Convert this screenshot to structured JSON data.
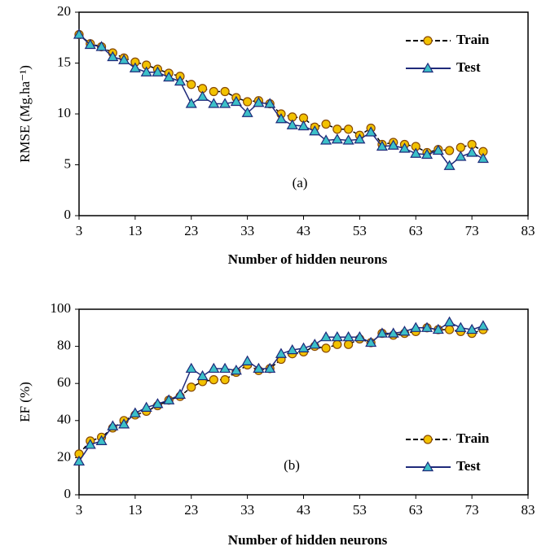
{
  "chart_data": [
    {
      "type": "line",
      "annotation": "(a)",
      "x_label": "Number of hidden neurons",
      "y_label": "RMSE (Mg.ha⁻¹)",
      "x": [
        3,
        5,
        7,
        9,
        11,
        13,
        15,
        17,
        19,
        21,
        23,
        25,
        27,
        29,
        31,
        33,
        35,
        37,
        39,
        41,
        43,
        45,
        47,
        49,
        51,
        53,
        55,
        57,
        59,
        61,
        63,
        65,
        67,
        69,
        71,
        73,
        75
      ],
      "series": [
        {
          "name": "Train",
          "color": "#f2c200",
          "line_color": "#000000",
          "dashed": true,
          "marker": "circle",
          "values": [
            17.8,
            16.9,
            16.6,
            16.0,
            15.5,
            15.1,
            14.8,
            14.4,
            14.0,
            13.7,
            12.9,
            12.5,
            12.2,
            12.2,
            11.6,
            11.2,
            11.3,
            11.0,
            10.0,
            9.7,
            9.6,
            8.7,
            9.0,
            8.5,
            8.5,
            7.9,
            8.6,
            7.0,
            7.2,
            7.0,
            6.8,
            6.2,
            6.5,
            6.4,
            6.7,
            7.0,
            6.3
          ]
        },
        {
          "name": "Test",
          "color": "#3cc0c8",
          "line_color": "#1f2a7a",
          "dashed": false,
          "marker": "triangle",
          "values": [
            17.8,
            16.8,
            16.6,
            15.6,
            15.3,
            14.5,
            14.1,
            14.1,
            13.6,
            13.2,
            11.0,
            11.7,
            11.0,
            11.0,
            11.2,
            10.1,
            11.1,
            11.0,
            9.5,
            8.9,
            8.8,
            8.3,
            7.4,
            7.5,
            7.4,
            7.5,
            8.2,
            6.8,
            6.9,
            6.6,
            6.1,
            6.0,
            6.4,
            4.9,
            5.8,
            6.2,
            5.6
          ]
        }
      ],
      "xlim": [
        3,
        83
      ],
      "xticks": [
        3,
        13,
        23,
        33,
        43,
        53,
        63,
        73,
        83
      ],
      "ylim": [
        0,
        20
      ],
      "yticks": [
        0,
        5,
        10,
        15,
        20
      ],
      "legend": "upper right"
    },
    {
      "type": "line",
      "annotation": "(b)",
      "x_label": "Number of hidden neurons",
      "y_label": "EF (%)",
      "x": [
        3,
        5,
        7,
        9,
        11,
        13,
        15,
        17,
        19,
        21,
        23,
        25,
        27,
        29,
        31,
        33,
        35,
        37,
        39,
        41,
        43,
        45,
        47,
        49,
        51,
        53,
        55,
        57,
        59,
        61,
        63,
        65,
        67,
        69,
        71,
        73,
        75
      ],
      "series": [
        {
          "name": "Train",
          "color": "#f2c200",
          "line_color": "#000000",
          "dashed": true,
          "marker": "circle",
          "values": [
            22,
            29,
            31,
            36,
            40,
            43,
            45,
            48,
            51,
            53,
            58,
            61,
            62,
            62,
            66,
            70,
            67,
            68,
            73,
            76,
            77,
            80,
            79,
            81,
            81,
            84,
            82,
            87,
            86,
            87,
            88,
            90,
            89,
            89,
            88,
            87,
            89
          ]
        },
        {
          "name": "Test",
          "color": "#3cc0c8",
          "line_color": "#1f2a7a",
          "dashed": false,
          "marker": "triangle",
          "values": [
            18,
            27,
            29,
            37,
            38,
            44,
            47,
            49,
            51,
            54,
            68,
            64,
            68,
            68,
            67,
            72,
            68,
            68,
            76,
            78,
            79,
            81,
            85,
            85,
            85,
            85,
            82,
            87,
            87,
            88,
            90,
            90,
            89,
            93,
            90,
            89,
            91
          ]
        }
      ],
      "xlim": [
        3,
        83
      ],
      "xticks": [
        3,
        13,
        23,
        33,
        43,
        53,
        63,
        73,
        83
      ],
      "ylim": [
        0,
        100
      ],
      "yticks": [
        0,
        20,
        40,
        60,
        80,
        100
      ],
      "legend": "lower right"
    }
  ]
}
